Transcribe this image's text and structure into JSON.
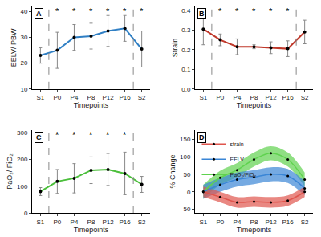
{
  "chart_data": [
    {
      "type": "line",
      "title": "A",
      "xlabel": "Timepoints",
      "ylabel": "EELV/ PBW",
      "categories": [
        "S1",
        "P0",
        "P4",
        "P8",
        "P12",
        "P16",
        "S2"
      ],
      "series": [
        {
          "name": "EELV/ PBW",
          "color": "#2f7fc4",
          "marker": "circle",
          "values": [
            23,
            25,
            30,
            30.5,
            32.5,
            33.5,
            25.5
          ],
          "errors": [
            3,
            7,
            5,
            5,
            6,
            5,
            7
          ]
        }
      ],
      "annotations": [
        {
          "category": "P0",
          "text": "*"
        },
        {
          "category": "P4",
          "text": "*"
        },
        {
          "category": "P8",
          "text": "*"
        },
        {
          "category": "P12",
          "text": "*"
        },
        {
          "category": "P16",
          "text": "*"
        },
        {
          "category": "S2",
          "text": "*"
        }
      ],
      "ylim": [
        10,
        42
      ],
      "yticks": [
        10,
        20,
        30,
        40
      ],
      "grid": false
    },
    {
      "type": "line",
      "title": "B",
      "xlabel": "Timepoints",
      "ylabel": "Strain",
      "categories": [
        "S1",
        "P0",
        "P4",
        "P8",
        "P12",
        "P16",
        "S2"
      ],
      "series": [
        {
          "name": "Strain",
          "color": "#c0392b",
          "marker": "circle",
          "values": [
            0.305,
            0.25,
            0.215,
            0.215,
            0.21,
            0.205,
            0.29
          ],
          "errors": [
            0.08,
            0.03,
            0.04,
            0.01,
            0.03,
            0.04,
            0.06
          ]
        }
      ],
      "annotations": [
        {
          "category": "P0",
          "text": "*"
        },
        {
          "category": "P4",
          "text": "*"
        },
        {
          "category": "P8",
          "text": "*"
        },
        {
          "category": "P12",
          "text": "*"
        },
        {
          "category": "P16",
          "text": "*"
        }
      ],
      "ylim": [
        0,
        0.42
      ],
      "yticks": [
        {
          "value": 0,
          "label": "0.0"
        },
        0.1,
        0.2,
        0.3,
        0.4
      ],
      "grid": false
    },
    {
      "type": "line",
      "title": "C",
      "xlabel": "Timepoints",
      "ylabel": "PaO₂/ FiO₂",
      "categories": [
        "S1",
        "P0",
        "P4",
        "P8",
        "P12",
        "P16",
        "S2"
      ],
      "series": [
        {
          "name": "PaO₂/ FiO₂",
          "color": "#4cbf3c",
          "marker": "circle",
          "values": [
            80,
            118,
            130,
            160,
            163,
            148,
            107
          ],
          "errors": [
            15,
            45,
            55,
            50,
            60,
            80,
            30
          ]
        }
      ],
      "annotations": [
        {
          "category": "P0",
          "text": "*"
        },
        {
          "category": "P4",
          "text": "*"
        },
        {
          "category": "P8",
          "text": "*"
        },
        {
          "category": "P12",
          "text": "*"
        },
        {
          "category": "P16",
          "text": "*"
        }
      ],
      "ylim": [
        0,
        310
      ],
      "yticks": [
        0,
        100,
        200,
        300
      ],
      "grid": false
    },
    {
      "type": "band",
      "title": "D",
      "xlabel": "Timepoints",
      "ylabel": "% Change",
      "categories": [
        "S1",
        "P0",
        "P4",
        "P8",
        "P12",
        "P16",
        "S2"
      ],
      "series": [
        {
          "name": "PaO₂/FiO₂",
          "color": "#5fd24f",
          "marker": "circle",
          "values": [
            0,
            40,
            62,
            92,
            110,
            92,
            35
          ],
          "errors": [
            20,
            20,
            20,
            20,
            20,
            20,
            20
          ]
        },
        {
          "name": "EELV",
          "color": "#3a86d6",
          "marker": "circle",
          "values": [
            0,
            20,
            35,
            42,
            50,
            45,
            10
          ],
          "errors": [
            20,
            20,
            20,
            20,
            20,
            20,
            20
          ]
        },
        {
          "name": "strain",
          "color": "#e0554d",
          "marker": "circle",
          "values": [
            0,
            -15,
            -30,
            -28,
            -30,
            -25,
            0
          ],
          "errors": [
            15,
            15,
            15,
            15,
            15,
            15,
            15
          ]
        }
      ],
      "legend": "upper left",
      "ylim": [
        -60,
        175
      ],
      "yticks": [
        -50,
        0,
        50,
        100,
        150
      ],
      "grid": false
    }
  ]
}
